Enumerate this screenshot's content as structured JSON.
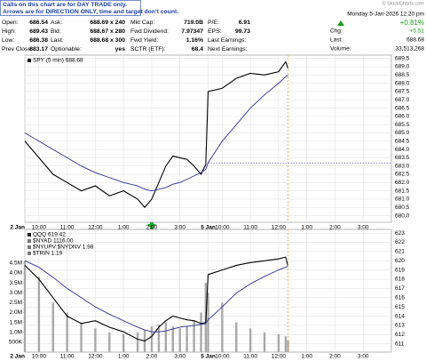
{
  "header": {
    "notes": [
      "Calls on this chart are for DAY TRADE only.",
      "Arrows are for DIRECTION ONLY, time and target don't count."
    ],
    "rows": [
      [
        "Open:",
        "686.54",
        "Ask:",
        "688.69 x 240",
        "Mkt Cap:",
        "719.0B",
        "P/E:",
        "6.91"
      ],
      [
        "High:",
        "689.43",
        "Bid:",
        "688.67 x 280",
        "Fwd Dividend:",
        "7.97347",
        "EPS:",
        "99.73"
      ],
      [
        "Low:",
        "686.38",
        "Last:",
        "688.68 x 300",
        "Fwd Yield:",
        "1.16%",
        "Last Earnings:"
      ],
      [
        "Prev Close:",
        "683.17",
        "Optionable:",
        "yes",
        "SCTR (ETF):",
        "68.4",
        "Next Earnings:"
      ]
    ],
    "date": "Monday  5-Jan-2026  12:20 pm",
    "chg_label": "Chg:",
    "chg_pct": "+0.81%",
    "chg": "+5.51",
    "last_label": "Last:",
    "last": "688.68",
    "volume_label": "Volume:",
    "volume": "33,513,268"
  },
  "watermark": "© StockCharts.com",
  "chart_data": [
    {
      "type": "line",
      "legend": [
        "SPY (5 min) 688.68"
      ],
      "x": [
        0,
        6,
        12,
        18,
        24,
        30,
        36,
        42,
        48,
        51,
        54,
        57,
        60,
        63,
        66,
        69,
        72,
        75,
        77,
        78,
        84,
        90,
        96,
        102,
        108,
        111,
        112
      ],
      "series": [
        {
          "name": "SPY (5 min) 688.68",
          "color": "#000000",
          "values": [
            684.5,
            683.5,
            682.5,
            682.0,
            681.5,
            681.8,
            681.2,
            681.5,
            681.0,
            680.5,
            681.0,
            682.0,
            683.0,
            683.6,
            683.5,
            683.4,
            683.0,
            682.5,
            683.1,
            687.5,
            687.7,
            688.3,
            688.6,
            688.5,
            688.7,
            689.3,
            688.9
          ]
        },
        {
          "color": "#2e2e9a",
          "values": [
            685.0,
            684.5,
            684.0,
            683.5,
            683.0,
            682.6,
            682.3,
            682.0,
            681.8,
            681.6,
            681.5,
            681.6,
            681.7,
            681.9,
            682.0,
            682.2,
            682.4,
            682.6,
            682.8,
            683.2,
            684.5,
            685.5,
            686.5,
            687.3,
            688.0,
            688.4,
            688.5
          ]
        }
      ],
      "xlim": [
        0,
        156
      ],
      "ylim": [
        679.6,
        689.7
      ],
      "xticks": [
        {
          "value": 0,
          "label": "2 Jan"
        },
        {
          "value": 6,
          "label": "10:00"
        },
        {
          "value": 18,
          "label": "11:00"
        },
        {
          "value": 30,
          "label": "12:00"
        },
        {
          "value": 42,
          "label": "1:00"
        },
        {
          "value": 54,
          "label": "2:00"
        },
        {
          "value": 66,
          "label": "3:00"
        },
        {
          "value": 78,
          "label": "5 Jan"
        },
        {
          "value": 84,
          "label": "10:00"
        },
        {
          "value": 96,
          "label": "11:00"
        },
        {
          "value": 108,
          "label": "12:00"
        },
        {
          "value": 120,
          "label": "1:00"
        },
        {
          "value": 132,
          "label": "2:00"
        },
        {
          "value": 144,
          "label": "3:00"
        }
      ],
      "yticks": [
        {
          "value": 680,
          "label": "680.0"
        },
        680.5,
        {
          "value": 681,
          "label": "681.0"
        },
        681.5,
        {
          "value": 682,
          "label": "682.0"
        },
        682.5,
        {
          "value": 683,
          "label": "683.0"
        },
        683.5,
        {
          "value": 684,
          "label": "684.0"
        },
        684.5,
        {
          "value": 685,
          "label": "685.0"
        },
        685.5,
        {
          "value": 686,
          "label": "686.0"
        },
        686.5,
        {
          "value": 687,
          "label": "687.0"
        },
        687.5,
        {
          "value": 688,
          "label": "688.0"
        },
        688.5,
        {
          "value": 689,
          "label": "689.0"
        },
        689.5
      ],
      "grid": true
    },
    {
      "type": "line",
      "legend": [
        "QQQ 619.42",
        "$NYAD 1116.00",
        "$NYUPV:$NYDNV 1.98",
        "$TRIN 1.19"
      ],
      "x": [
        0,
        6,
        12,
        18,
        24,
        30,
        36,
        42,
        48,
        51,
        54,
        57,
        60,
        63,
        66,
        69,
        72,
        75,
        77,
        78,
        84,
        90,
        96,
        102,
        108,
        111,
        112
      ],
      "series": [
        {
          "type": "bar",
          "axis": "y2",
          "color": "#a8a8a8",
          "values": [
            4600000,
            3800000,
            2500000,
            2000000,
            1500000,
            1200000,
            1000000,
            900000,
            1000000,
            1100000,
            1300000,
            1400000,
            1500000,
            1300000,
            1200000,
            1300000,
            1600000,
            2000000,
            3500000,
            3000000,
            2500000,
            1500000,
            1200000,
            1000000,
            900000,
            800000,
            600000
          ]
        },
        {
          "name": "QQQ 619.42",
          "color": "#000000",
          "values": [
            619.5,
            618.0,
            616.0,
            614.0,
            613.2,
            613.5,
            612.8,
            612.3,
            611.5,
            611.3,
            611.8,
            612.8,
            613.5,
            614.0,
            613.8,
            613.6,
            613.5,
            613.2,
            613.3,
            618.5,
            619.0,
            619.5,
            619.8,
            620.0,
            620.2,
            620.4,
            619.4
          ]
        },
        {
          "color": "#2e2e9a",
          "values": [
            620.0,
            619.3,
            618.2,
            617.0,
            616.0,
            615.0,
            614.2,
            613.5,
            612.8,
            612.5,
            612.3,
            612.3,
            612.4,
            612.6,
            612.8,
            612.9,
            613.0,
            613.1,
            613.2,
            613.6,
            615.0,
            616.5,
            617.5,
            618.3,
            619.0,
            619.3,
            619.4
          ]
        }
      ],
      "xlim": [
        0,
        156
      ],
      "ylim": [
        610.1,
        623.4
      ],
      "y2lim": [
        0,
        6200000
      ],
      "xticks": [
        {
          "value": 0,
          "label": "2 Jan"
        },
        {
          "value": 6,
          "label": "10:00"
        },
        {
          "value": 18,
          "label": "11:00"
        },
        {
          "value": 30,
          "label": "12:00"
        },
        {
          "value": 42,
          "label": "1:00"
        },
        {
          "value": 54,
          "label": "2:00"
        },
        {
          "value": 66,
          "label": "3:00"
        },
        {
          "value": 78,
          "label": "5 Jan"
        },
        {
          "value": 84,
          "label": "10:00"
        },
        {
          "value": 96,
          "label": "11:00"
        },
        {
          "value": 108,
          "label": "12:00"
        },
        {
          "value": 120,
          "label": "1:00"
        },
        {
          "value": 132,
          "label": "2:00"
        },
        {
          "value": 144,
          "label": "3:00"
        }
      ],
      "yticks": [
        611,
        612,
        613,
        614,
        615,
        616,
        617,
        618,
        619,
        620,
        621,
        622,
        623
      ],
      "y2ticks": [
        {
          "value": 500000,
          "label": "500K"
        },
        {
          "value": 1000000,
          "label": "1.0M"
        },
        {
          "value": 1500000,
          "label": "1.5M"
        },
        {
          "value": 2000000,
          "label": "2.0M"
        },
        {
          "value": 2500000,
          "label": "2.5M"
        },
        {
          "value": 3000000,
          "label": "3.0M"
        },
        {
          "value": 3500000,
          "label": "3.5M"
        },
        {
          "value": 4000000,
          "label": "4.0M"
        },
        {
          "value": 4500000,
          "label": "4.5M"
        }
      ],
      "grid": true
    }
  ]
}
